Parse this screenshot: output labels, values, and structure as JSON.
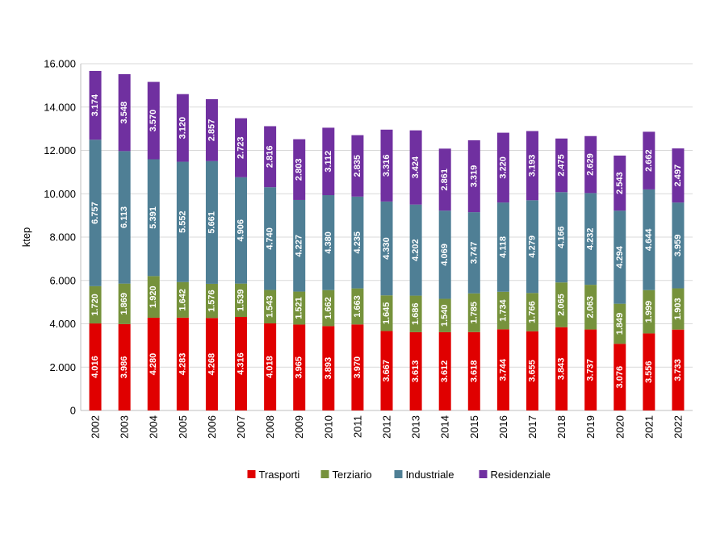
{
  "chart_data": {
    "type": "bar",
    "stacked": true,
    "title": "",
    "xlabel": "",
    "ylabel": "ktep",
    "ylim": [
      0,
      16000
    ],
    "yticks": [
      0,
      2000,
      4000,
      6000,
      8000,
      10000,
      12000,
      14000,
      16000
    ],
    "ytick_labels": [
      "0",
      "2.000",
      "4.000",
      "6.000",
      "8.000",
      "10.000",
      "12.000",
      "14.000",
      "16.000"
    ],
    "grid": true,
    "legend_position": "bottom",
    "categories": [
      "2002",
      "2003",
      "2004",
      "2005",
      "2006",
      "2007",
      "2008",
      "2009",
      "2010",
      "2011",
      "2012",
      "2013",
      "2014",
      "2015",
      "2016",
      "2017",
      "2018",
      "2019",
      "2020",
      "2021",
      "2022"
    ],
    "series": [
      {
        "name": "Trasporti",
        "color": "#e00000",
        "values": [
          4016,
          3986,
          4280,
          4283,
          4268,
          4316,
          4018,
          3965,
          3893,
          3970,
          3667,
          3613,
          3612,
          3618,
          3744,
          3655,
          3843,
          3737,
          3076,
          3556,
          3733
        ],
        "labels": [
          "4.016",
          "3.986",
          "4.280",
          "4.283",
          "4.268",
          "4.316",
          "4.018",
          "3.965",
          "3.893",
          "3.970",
          "3.667",
          "3.613",
          "3.612",
          "3.618",
          "3.744",
          "3.655",
          "3.843",
          "3.737",
          "3.076",
          "3.556",
          "3.733"
        ]
      },
      {
        "name": "Terziario",
        "color": "#76923c",
        "values": [
          1720,
          1869,
          1920,
          1642,
          1576,
          1539,
          1543,
          1521,
          1662,
          1663,
          1645,
          1686,
          1540,
          1785,
          1734,
          1766,
          2065,
          2063,
          1849,
          1999,
          1903
        ],
        "labels": [
          "1.720",
          "1.869",
          "1.920",
          "1.642",
          "1.576",
          "1.539",
          "1.543",
          "1.521",
          "1.662",
          "1.663",
          "1.645",
          "1.686",
          "1.540",
          "1.785",
          "1.734",
          "1.766",
          "2.065",
          "2.063",
          "1.849",
          "1.999",
          "1.903"
        ]
      },
      {
        "name": "Industriale",
        "color": "#4f7f95",
        "values": [
          6757,
          6113,
          5391,
          5552,
          5661,
          4906,
          4740,
          4227,
          4380,
          4235,
          4330,
          4202,
          4069,
          3747,
          4118,
          4279,
          4166,
          4232,
          4294,
          4644,
          3959
        ],
        "labels": [
          "6.757",
          "6.113",
          "5.391",
          "5.552",
          "5.661",
          "4.906",
          "4.740",
          "4.227",
          "4.380",
          "4.235",
          "4.330",
          "4.202",
          "4.069",
          "3.747",
          "4.118",
          "4.279",
          "4.166",
          "4.232",
          "4.294",
          "4.644",
          "3.959"
        ]
      },
      {
        "name": "Residenziale",
        "color": "#7030a0",
        "values": [
          3174,
          3548,
          3570,
          3120,
          2857,
          2723,
          2816,
          2803,
          3112,
          2835,
          3316,
          3424,
          2861,
          3319,
          3220,
          3193,
          2475,
          2629,
          2543,
          2662,
          2497
        ],
        "labels": [
          "3.174",
          "3.548",
          "3.570",
          "3.120",
          "2.857",
          "2.723",
          "2.816",
          "2.803",
          "3.112",
          "2.835",
          "3.316",
          "3.424",
          "2.861",
          "3.319",
          "3.220",
          "3.193",
          "2.475",
          "2.629",
          "2.543",
          "2.662",
          "2.497"
        ]
      }
    ]
  }
}
